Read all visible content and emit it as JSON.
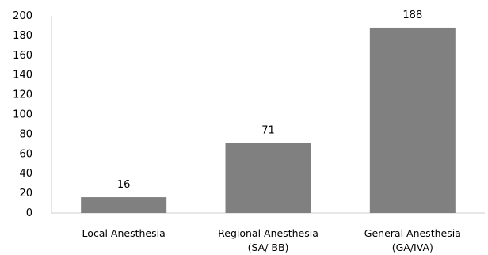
{
  "chart_data": {
    "type": "bar",
    "categories": [
      [
        "Local Anesthesia"
      ],
      [
        "Regional Anesthesia",
        "(SA/ BB)"
      ],
      [
        "General Anesthesia",
        "(GA/IVA)"
      ]
    ],
    "values": [
      16,
      71,
      188
    ],
    "data_labels": [
      "16",
      "71",
      "188"
    ],
    "ylim": [
      0,
      200
    ],
    "yticks": [
      "0",
      "20",
      "40",
      "60",
      "80",
      "100",
      "120",
      "140",
      "160",
      "180",
      "200"
    ],
    "bar_color": "#808080",
    "grid": false,
    "legend": "none"
  }
}
